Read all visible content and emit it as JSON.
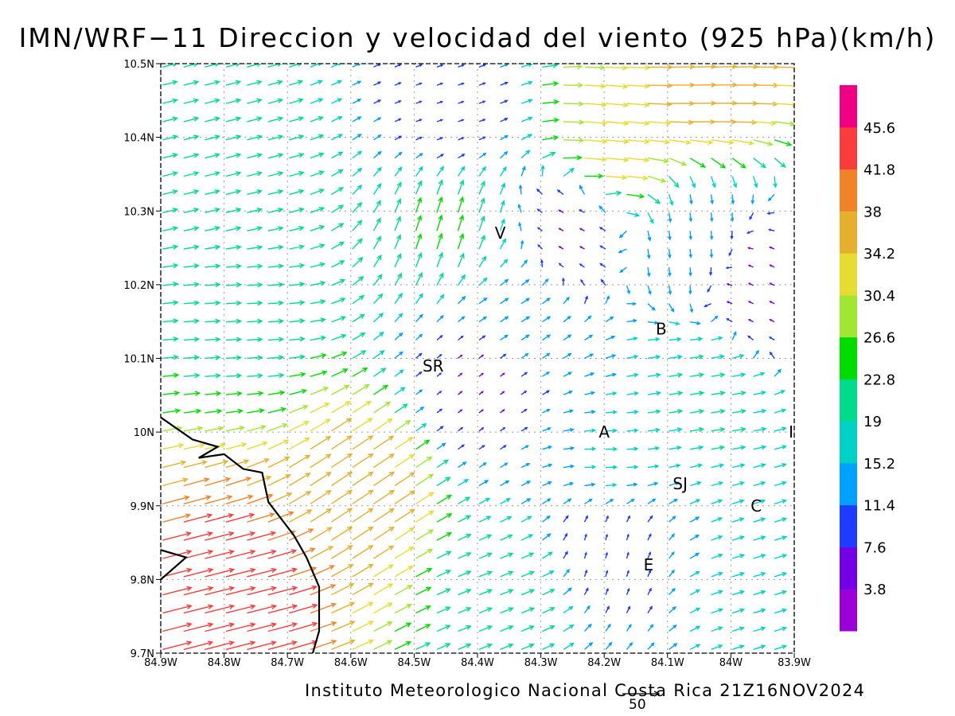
{
  "title": "IMN/WRF−11 Direccion y velocidad del viento (925 hPa)(km/h)",
  "credit": "Instituto Meteorologico Nacional Costa Rica 21Z16NOV2024",
  "reference_vector": {
    "label": "50",
    "speed_kmh": 50
  },
  "map": {
    "lon_range": [
      -84.9,
      -83.9
    ],
    "lat_range": [
      9.7,
      10.5
    ],
    "grid": "dotted",
    "x_ticks": [
      {
        "lon": -84.9,
        "label": "84.9W"
      },
      {
        "lon": -84.8,
        "label": "84.8W"
      },
      {
        "lon": -84.7,
        "label": "84.7W"
      },
      {
        "lon": -84.6,
        "label": "84.6W"
      },
      {
        "lon": -84.5,
        "label": "84.5W"
      },
      {
        "lon": -84.4,
        "label": "84.4W"
      },
      {
        "lon": -84.3,
        "label": "84.3W"
      },
      {
        "lon": -84.2,
        "label": "84.2W"
      },
      {
        "lon": -84.1,
        "label": "84.1W"
      },
      {
        "lon": -84.0,
        "label": "84W"
      },
      {
        "lon": -83.9,
        "label": "83.9W"
      }
    ],
    "y_ticks": [
      {
        "lat": 9.7,
        "label": "9.7N"
      },
      {
        "lat": 9.8,
        "label": "9.8N"
      },
      {
        "lat": 9.9,
        "label": "9.9N"
      },
      {
        "lat": 10.0,
        "label": "10N"
      },
      {
        "lat": 10.1,
        "label": "10.1N"
      },
      {
        "lat": 10.2,
        "label": "10.2N"
      },
      {
        "lat": 10.3,
        "label": "10.3N"
      },
      {
        "lat": 10.4,
        "label": "10.4N"
      },
      {
        "lat": 10.5,
        "label": "10.5N"
      }
    ],
    "cities": [
      {
        "label": "V",
        "lon": -84.364,
        "lat": 10.27
      },
      {
        "label": "SR",
        "lon": -84.47,
        "lat": 10.09
      },
      {
        "label": "B",
        "lon": -84.11,
        "lat": 10.14
      },
      {
        "label": "A",
        "lon": -84.2,
        "lat": 10.0
      },
      {
        "label": "I",
        "lon": -83.905,
        "lat": 10.0
      },
      {
        "label": "SJ",
        "lon": -84.08,
        "lat": 9.93
      },
      {
        "label": "C",
        "lon": -83.96,
        "lat": 9.9
      },
      {
        "label": "E",
        "lon": -84.13,
        "lat": 9.82
      }
    ],
    "coastline": [
      [
        -84.9,
        10.02
      ],
      [
        -84.85,
        9.99
      ],
      [
        -84.81,
        9.98
      ],
      [
        -84.84,
        9.965
      ],
      [
        -84.8,
        9.97
      ],
      [
        -84.77,
        9.95
      ],
      [
        -84.74,
        9.945
      ],
      [
        -84.73,
        9.905
      ],
      [
        -84.69,
        9.86
      ],
      [
        -84.67,
        9.83
      ],
      [
        -84.65,
        9.79
      ],
      [
        -84.65,
        9.73
      ],
      [
        -84.66,
        9.7
      ]
    ],
    "coastline_south": [
      [
        -84.9,
        9.84
      ],
      [
        -84.86,
        9.83
      ],
      [
        -84.9,
        9.8
      ]
    ]
  },
  "colorbar": {
    "levels": [
      "3.8",
      "7.6",
      "11.4",
      "15.2",
      "19",
      "22.8",
      "26.6",
      "30.4",
      "34.2",
      "38",
      "41.8",
      "45.6"
    ],
    "colors": [
      "#9b00d8",
      "#7400e6",
      "#1e3cff",
      "#00a0ff",
      "#00d2c8",
      "#00dc8c",
      "#00dc00",
      "#a0e632",
      "#e6dc32",
      "#e6af2d",
      "#f08228",
      "#fa3c3c",
      "#f00082"
    ]
  },
  "wind_regions": [
    {
      "name": "north-band",
      "lon": -84.05,
      "lat": 10.47,
      "u": 1.0,
      "v": 0.02,
      "speed": 38
    },
    {
      "name": "east-flow",
      "lon": -84.2,
      "lat": 10.38,
      "u": 1.0,
      "v": -0.1,
      "speed": 34
    },
    {
      "name": "west-north",
      "lon": -84.8,
      "lat": 10.35,
      "u": 1.0,
      "v": 0.25,
      "speed": 22
    },
    {
      "name": "west-mid",
      "lon": -84.78,
      "lat": 10.15,
      "u": 1.0,
      "v": 0.05,
      "speed": 22
    },
    {
      "name": "central-rise",
      "lon": -84.45,
      "lat": 10.28,
      "u": 0.3,
      "v": 1.0,
      "speed": 24
    },
    {
      "name": "calm-north",
      "lon": -84.45,
      "lat": 10.42,
      "u": 0.6,
      "v": 0.2,
      "speed": 8
    },
    {
      "name": "calm-v",
      "lon": -84.25,
      "lat": 10.28,
      "u": -0.6,
      "v": 0.3,
      "speed": 6
    },
    {
      "name": "northeast-s",
      "lon": -84.05,
      "lat": 10.27,
      "u": 0.1,
      "v": -1.0,
      "speed": 12
    },
    {
      "name": "far-east",
      "lon": -83.95,
      "lat": 10.2,
      "u": -0.8,
      "v": 0.4,
      "speed": 6
    },
    {
      "name": "central",
      "lon": -84.35,
      "lat": 10.15,
      "u": 0.8,
      "v": 0.5,
      "speed": 14
    },
    {
      "name": "sr-calm",
      "lon": -84.4,
      "lat": 10.07,
      "u": 0.5,
      "v": 0.4,
      "speed": 6
    },
    {
      "name": "mid-east",
      "lon": -84.05,
      "lat": 10.05,
      "u": 1.0,
      "v": 0.15,
      "speed": 20
    },
    {
      "name": "central-south",
      "lon": -84.2,
      "lat": 9.95,
      "u": 1.0,
      "v": 0.0,
      "speed": 16
    },
    {
      "name": "southwest-strong",
      "lon": -84.8,
      "lat": 9.78,
      "u": 1.0,
      "v": 0.25,
      "speed": 44
    },
    {
      "name": "southwest-mid",
      "lon": -84.6,
      "lat": 9.92,
      "u": 0.9,
      "v": 0.6,
      "speed": 36
    },
    {
      "name": "south-central",
      "lon": -84.35,
      "lat": 9.78,
      "u": 0.9,
      "v": 0.35,
      "speed": 20
    },
    {
      "name": "south-calm",
      "lon": -84.2,
      "lat": 9.85,
      "u": 0.2,
      "v": 0.9,
      "speed": 8
    },
    {
      "name": "southeast",
      "lon": -83.95,
      "lat": 9.8,
      "u": 1.0,
      "v": 0.3,
      "speed": 18
    }
  ]
}
